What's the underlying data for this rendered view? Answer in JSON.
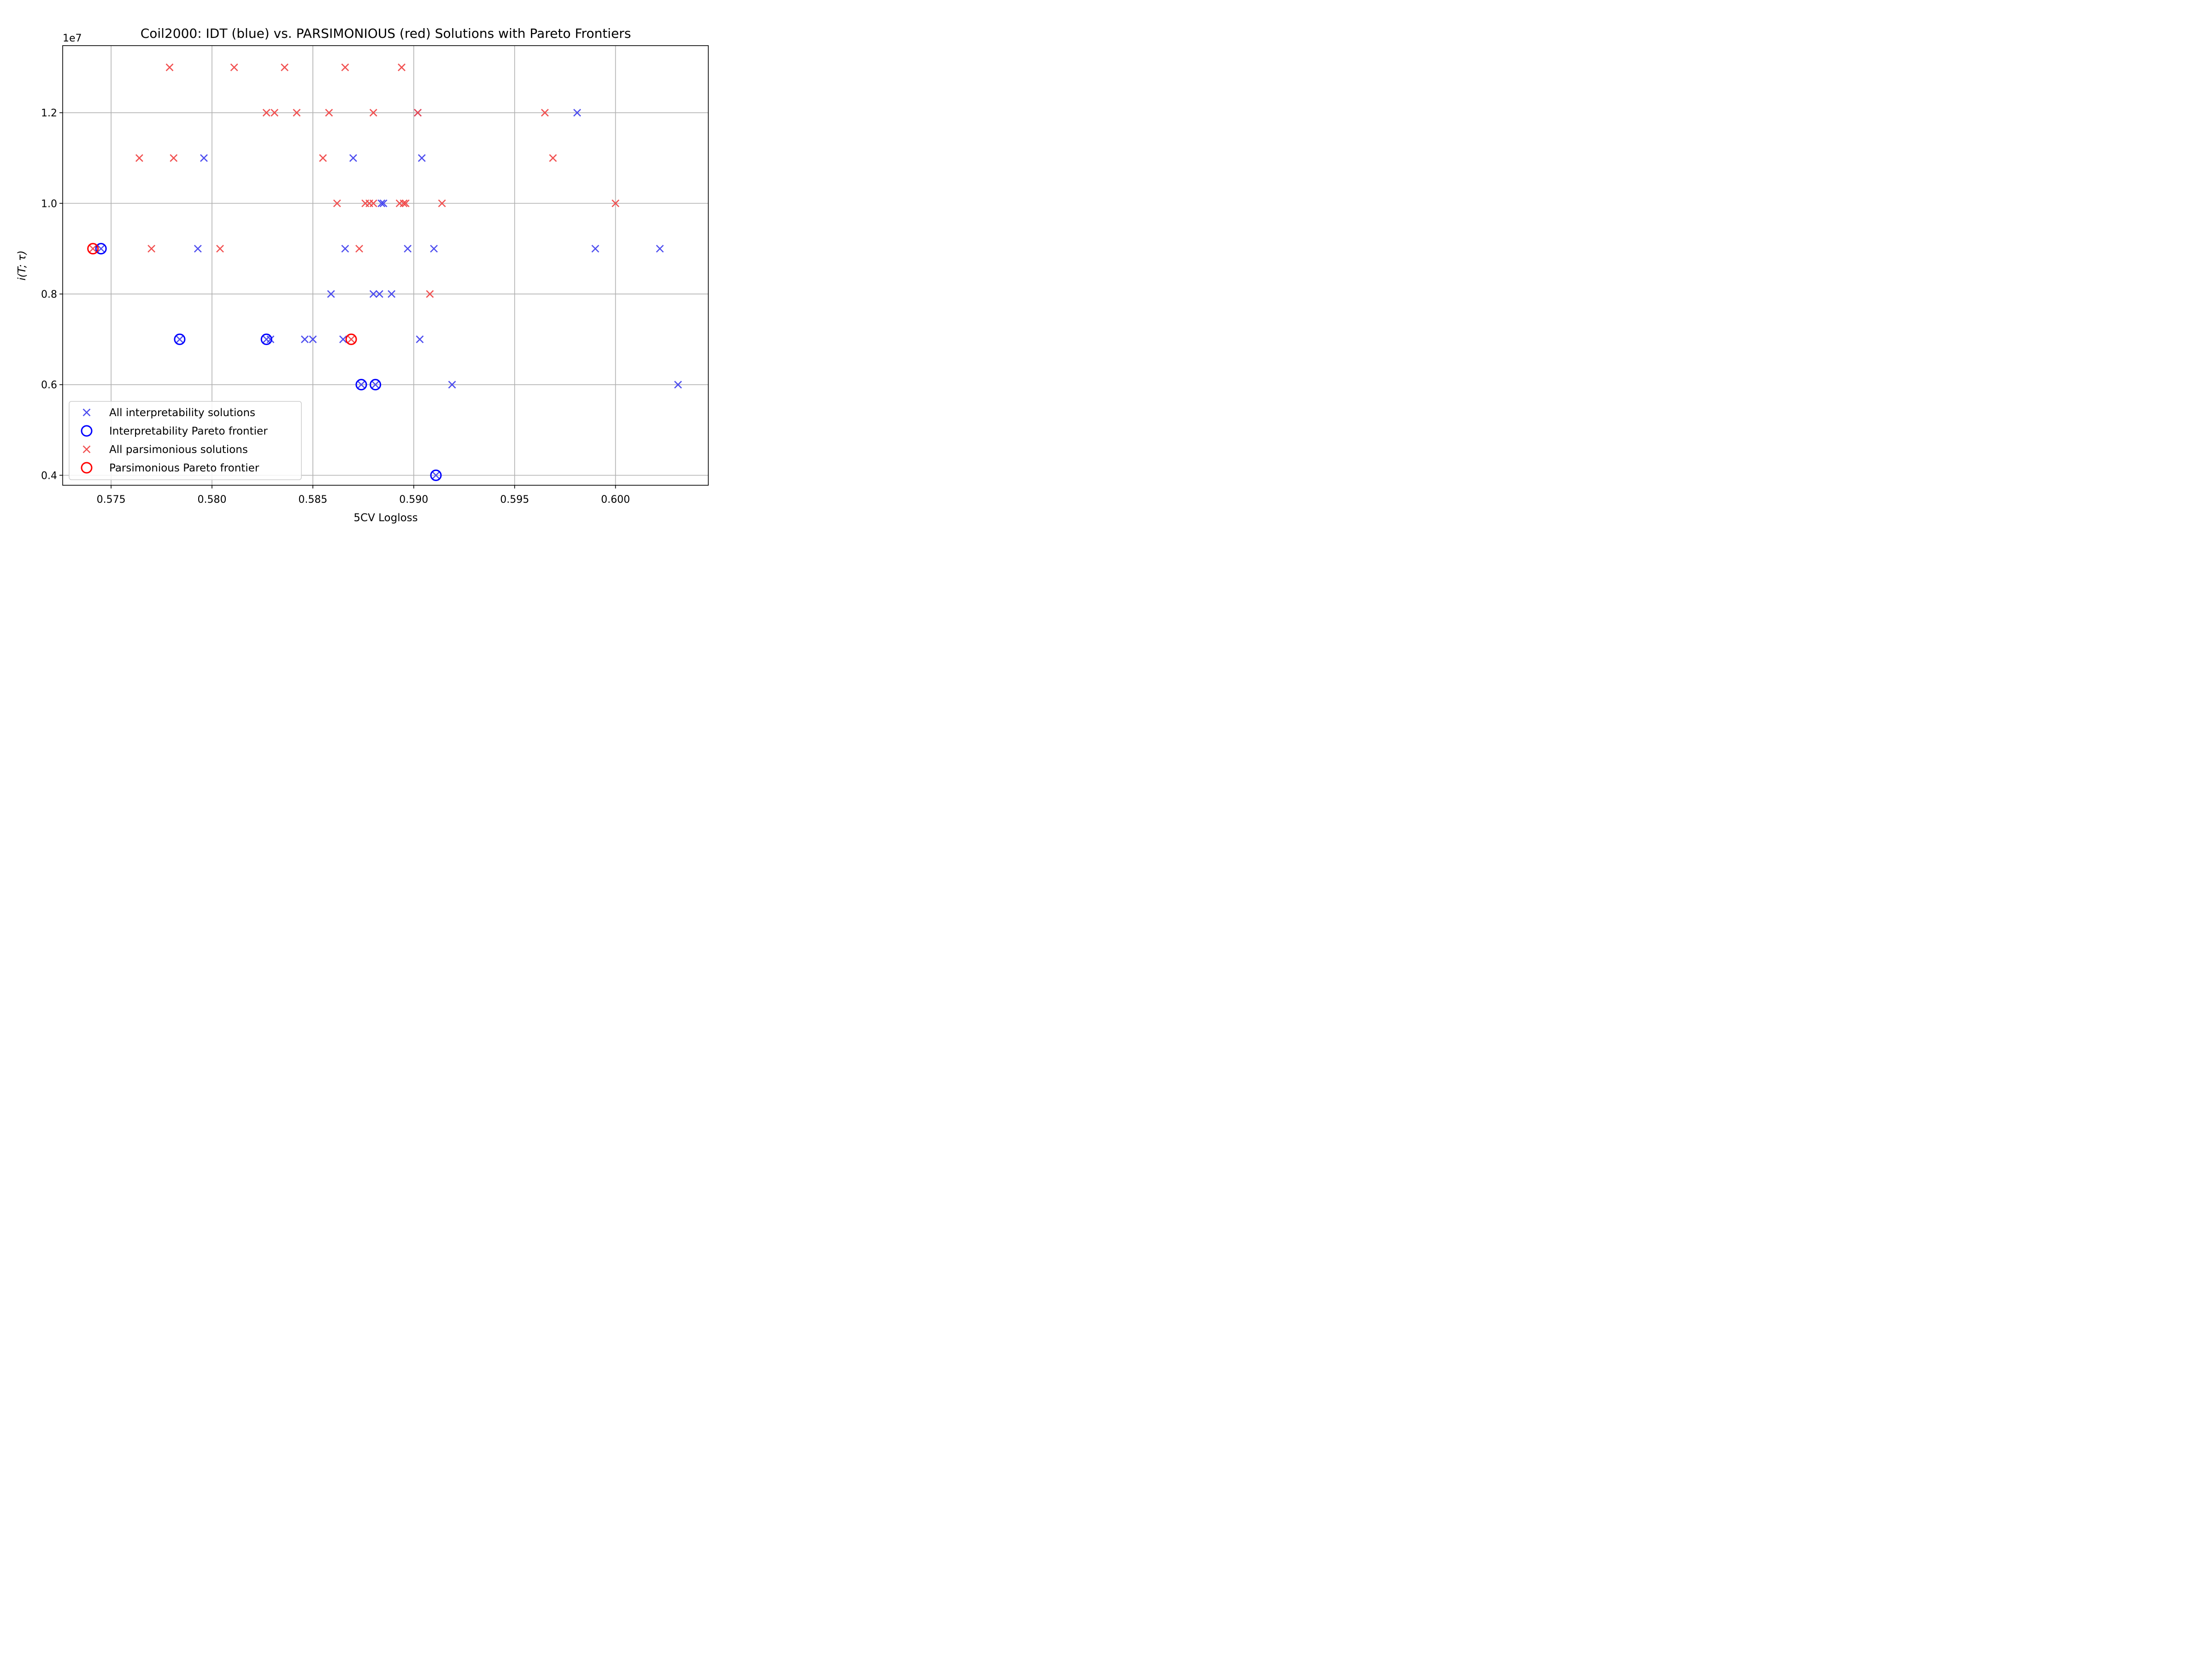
{
  "chart_data": {
    "type": "scatter",
    "title": "Coil2000: IDT (blue) vs. PARSIMONIOUS (red) Solutions with Pareto Frontiers",
    "xlabel": "5CV Logloss",
    "ylabel": "i(T; τ)",
    "y_offset_text": "1e7",
    "xlim": [
      0.5726,
      0.6046
    ],
    "ylim": [
      3.78,
      13.48
    ],
    "y_unit_multiplier": 10000000,
    "x_ticks": [
      0.575,
      0.58,
      0.585,
      0.59,
      0.595,
      0.6
    ],
    "x_tick_labels": [
      "0.575",
      "0.580",
      "0.585",
      "0.590",
      "0.595",
      "0.600"
    ],
    "y_ticks": [
      4,
      6,
      8,
      10,
      12
    ],
    "y_tick_labels": [
      "0.4",
      "0.6",
      "0.8",
      "1.0",
      "1.2"
    ],
    "grid": true,
    "legend_position": "lower-left",
    "series": [
      {
        "name": "All interpretability solutions",
        "marker": "x",
        "color": "#4444ee",
        "points": [
          [
            0.5745,
            9.0
          ],
          [
            0.5784,
            7.0
          ],
          [
            0.5793,
            9.0
          ],
          [
            0.5796,
            11.0
          ],
          [
            0.5827,
            7.0
          ],
          [
            0.5829,
            7.0
          ],
          [
            0.5846,
            7.0
          ],
          [
            0.585,
            7.0
          ],
          [
            0.5859,
            8.0
          ],
          [
            0.5865,
            7.0
          ],
          [
            0.5866,
            9.0
          ],
          [
            0.587,
            11.0
          ],
          [
            0.5874,
            6.0
          ],
          [
            0.588,
            8.0
          ],
          [
            0.5881,
            6.0
          ],
          [
            0.5883,
            8.0
          ],
          [
            0.5884,
            10.0
          ],
          [
            0.5885,
            10.0
          ],
          [
            0.5889,
            8.0
          ],
          [
            0.5897,
            9.0
          ],
          [
            0.5902,
            12.0
          ],
          [
            0.5903,
            7.0
          ],
          [
            0.5904,
            11.0
          ],
          [
            0.591,
            9.0
          ],
          [
            0.5911,
            4.0
          ],
          [
            0.5919,
            6.0
          ],
          [
            0.5981,
            12.0
          ],
          [
            0.599,
            9.0
          ],
          [
            0.6022,
            9.0
          ],
          [
            0.6031,
            6.0
          ]
        ]
      },
      {
        "name": "Interpretability Pareto frontier",
        "marker": "o",
        "color": "#0000ff",
        "points": [
          [
            0.5745,
            9.0
          ],
          [
            0.5784,
            7.0
          ],
          [
            0.5827,
            7.0
          ],
          [
            0.5874,
            6.0
          ],
          [
            0.5881,
            6.0
          ],
          [
            0.5911,
            4.0
          ]
        ]
      },
      {
        "name": "All parsimonious solutions",
        "marker": "x",
        "color": "#f04848",
        "points": [
          [
            0.5741,
            9.0
          ],
          [
            0.5764,
            11.0
          ],
          [
            0.577,
            9.0
          ],
          [
            0.5779,
            13.0
          ],
          [
            0.5781,
            11.0
          ],
          [
            0.5804,
            9.0
          ],
          [
            0.5811,
            13.0
          ],
          [
            0.5827,
            12.0
          ],
          [
            0.5831,
            12.0
          ],
          [
            0.5836,
            13.0
          ],
          [
            0.5842,
            12.0
          ],
          [
            0.5855,
            11.0
          ],
          [
            0.5858,
            12.0
          ],
          [
            0.5862,
            10.0
          ],
          [
            0.5866,
            13.0
          ],
          [
            0.5869,
            7.0
          ],
          [
            0.5873,
            9.0
          ],
          [
            0.5876,
            10.0
          ],
          [
            0.5878,
            10.0
          ],
          [
            0.588,
            12.0
          ],
          [
            0.588,
            10.0
          ],
          [
            0.5893,
            10.0
          ],
          [
            0.5894,
            13.0
          ],
          [
            0.5895,
            10.0
          ],
          [
            0.5896,
            10.0
          ],
          [
            0.5902,
            12.0
          ],
          [
            0.5908,
            8.0
          ],
          [
            0.5914,
            10.0
          ],
          [
            0.5965,
            12.0
          ],
          [
            0.5969,
            11.0
          ],
          [
            0.6,
            10.0
          ]
        ]
      },
      {
        "name": "Parsimonious Pareto frontier",
        "marker": "o",
        "color": "#ff0000",
        "points": [
          [
            0.5741,
            9.0
          ],
          [
            0.5869,
            7.0
          ]
        ]
      }
    ]
  }
}
